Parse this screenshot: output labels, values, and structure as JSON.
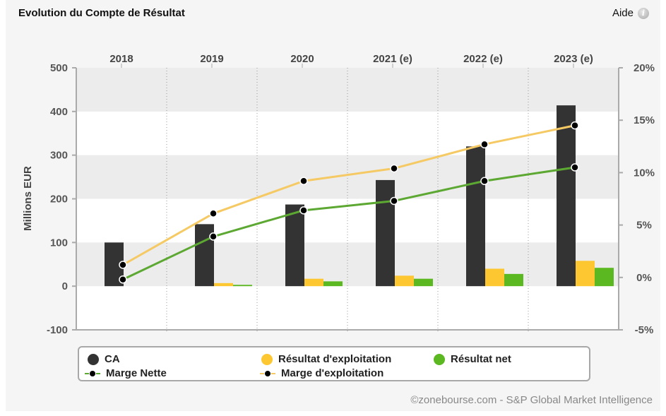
{
  "header": {
    "title": "Evolution du Compte de Résultat",
    "help_label": "Aide",
    "help_icon": "info-icon"
  },
  "footer": {
    "credit": "©zonebourse.com - S&P Global Market Intelligence"
  },
  "colors": {
    "ca": "#333333",
    "resultat_exploitation": "#fdc731",
    "resultat_net": "#5cb820",
    "marge_nette": "#5ca832",
    "marge_exploitation": "#f5c963"
  },
  "chart_data": {
    "type": "bar",
    "title": "Evolution du Compte de Résultat",
    "categories": [
      "2018",
      "2019",
      "2020",
      "2021 (e)",
      "2022 (e)",
      "2023 (e)"
    ],
    "ylabel": "Millions EUR",
    "ylim": [
      -100,
      500
    ],
    "yticks": [
      -100,
      0,
      100,
      200,
      300,
      400,
      500
    ],
    "y2lim": [
      -5,
      20
    ],
    "y2ticks": [
      "-5%",
      "0%",
      "5%",
      "10%",
      "15%",
      "20%"
    ],
    "y2ticks_values": [
      -5,
      0,
      5,
      10,
      15,
      20
    ],
    "grid": "alternating horizontal bands, dotted vertical separators",
    "legend_position": "bottom",
    "series": [
      {
        "name": "CA",
        "kind": "bar",
        "axis": "left",
        "values": [
          100,
          142,
          187,
          243,
          320,
          414
        ]
      },
      {
        "name": "Résultat d'exploitation",
        "kind": "bar",
        "axis": "left",
        "values": [
          0,
          7,
          17,
          24,
          40,
          58
        ]
      },
      {
        "name": "Résultat net",
        "kind": "bar",
        "axis": "left",
        "values": [
          0,
          3,
          11,
          17,
          28,
          42
        ]
      },
      {
        "name": "Marge Nette",
        "kind": "line",
        "axis": "right",
        "values": [
          -0.2,
          3.9,
          6.4,
          7.3,
          9.2,
          10.5
        ]
      },
      {
        "name": "Marge d'exploitation",
        "kind": "line",
        "axis": "right",
        "values": [
          1.2,
          6.1,
          9.2,
          10.4,
          12.7,
          14.5
        ]
      }
    ]
  }
}
